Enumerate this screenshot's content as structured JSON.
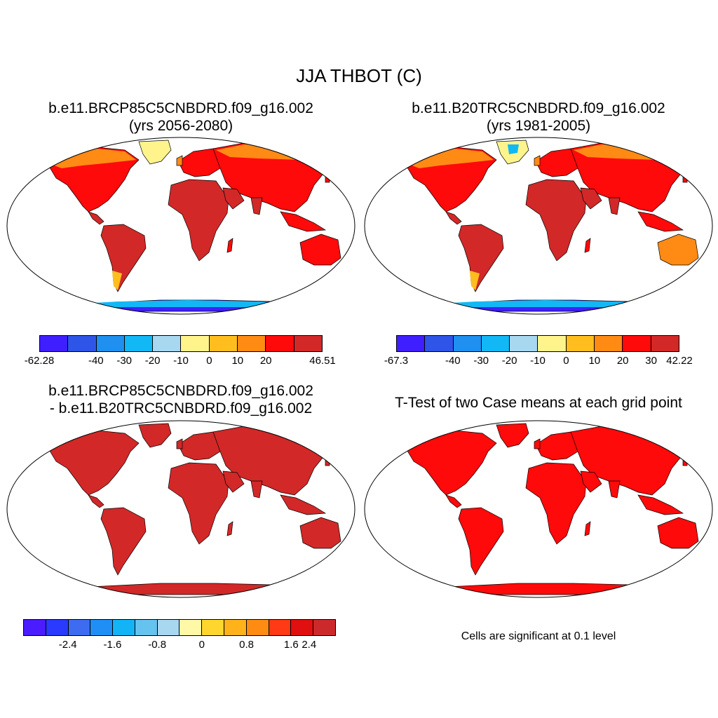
{
  "title": "JJA THBOT (C)",
  "panels": [
    {
      "title_line1": "b.e11.BRCP85C5CNBDRD.f09_g16.002",
      "title_line2": "(yrs 2056-2080)",
      "colorbar": {
        "colors": [
          "#3f1fff",
          "#2f55e8",
          "#1f8ff0",
          "#12b8f5",
          "#a7d8f0",
          "#fff48c",
          "#ffbe1e",
          "#ff8a14",
          "#ff0a0a",
          "#d22828"
        ],
        "labels": [
          "-62.28",
          "-40",
          "-30",
          "-20",
          "-10",
          "0",
          "10",
          "20",
          "46.51"
        ]
      }
    },
    {
      "title_line1": "b.e11.B20TRC5CNBDRD.f09_g16.002",
      "title_line2": "(yrs 1981-2005)",
      "colorbar": {
        "colors": [
          "#3f1fff",
          "#2f55e8",
          "#1f8ff0",
          "#12b8f5",
          "#a7d8f0",
          "#fff48c",
          "#ffbe1e",
          "#ff8a14",
          "#ff0a0a",
          "#d22828"
        ],
        "labels": [
          "-67.3",
          "-40",
          "-30",
          "-20",
          "-10",
          "0",
          "10",
          "20",
          "30",
          "42.22"
        ]
      }
    },
    {
      "title_line1": "b.e11.BRCP85C5CNBDRD.f09_g16.002",
      "title_line2": "- b.e11.B20TRC5CNBDRD.f09_g16.002",
      "colorbar": {
        "colors": [
          "#4a1cff",
          "#2a3aff",
          "#3d6cf0",
          "#1f8ff5",
          "#12b4f5",
          "#66c2ee",
          "#a8d8f0",
          "#fff8a6",
          "#ffd62e",
          "#ffb21a",
          "#ff8c12",
          "#ff3a14",
          "#e01010",
          "#cc2a2a"
        ],
        "labels": [
          "-2.4",
          "-1.6",
          "-0.8",
          "0",
          "0.8",
          "1.6",
          "2.4"
        ]
      }
    },
    {
      "title_line1": "T-Test of two Case means at each grid point",
      "note": "Cells are significant at 0.1 level"
    }
  ],
  "map_colors": {
    "land_hot": "#d22828",
    "land_warm": "#ff0a0a",
    "land_mild": "#ff8a14",
    "land_cool": "#ffbe1e",
    "ice_light": "#fff48c",
    "ice_cold": "#12b8f5",
    "ice_coldest": "#3f1fff",
    "diff_land": "#d22828",
    "ttest_land": "#ff0a0a"
  }
}
